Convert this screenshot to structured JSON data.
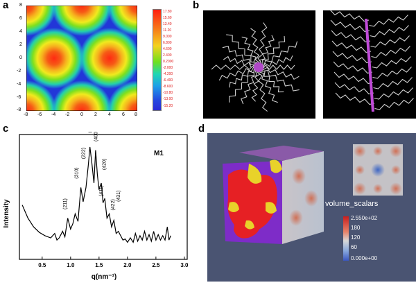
{
  "panels": {
    "a": {
      "label": "a",
      "x_ticks": [
        "-8",
        "-6",
        "-4",
        "-2",
        "0",
        "2",
        "4",
        "6",
        "8"
      ],
      "y_ticks": [
        "8",
        "6",
        "4",
        "2",
        "0",
        "-2",
        "-4",
        "-6",
        "-8"
      ],
      "colorbar_labels": [
        "17.80",
        "15.60",
        "13.40",
        "11.20",
        "9.000",
        "6.800",
        "4.600",
        "2.400",
        "0.2000",
        "-2.000",
        "-4.200",
        "-6.400",
        "-8.600",
        "-10.80",
        "-13.00",
        "-15.20"
      ],
      "colors": {
        "high": "#e8241b",
        "mid": "#f2e61e",
        "low": "#1e36d6"
      }
    },
    "b": {
      "label": "b"
    },
    "c": {
      "label": "c",
      "sample": "M1",
      "ylabel": "Intensity",
      "xlabel": "q(nm⁻¹)",
      "peaks": [
        "(211)",
        "(310)",
        "(222)",
        "(321)",
        "(400)",
        "(420)",
        "(411)",
        "(422)",
        "(431)"
      ],
      "x_ticks": [
        "0.5",
        "1.0",
        "1.5",
        "2.0",
        "2.5",
        "3.0"
      ]
    },
    "d": {
      "label": "d",
      "scalar_name": "volume_scalars",
      "scalar_ticks": [
        "2.550e+02",
        "180",
        "120",
        "60",
        "0.000e+00"
      ]
    }
  },
  "chart_data": {
    "type": "line",
    "title": "M1",
    "xlabel": "q(nm⁻¹)",
    "ylabel": "Intensity",
    "xlim": [
      0.1,
      3.05
    ],
    "ylim": [
      0,
      1
    ],
    "x": [
      0.15,
      0.25,
      0.35,
      0.45,
      0.55,
      0.65,
      0.72,
      0.76,
      0.8,
      0.86,
      0.9,
      0.95,
      1.0,
      1.04,
      1.08,
      1.13,
      1.18,
      1.22,
      1.27,
      1.31,
      1.34,
      1.37,
      1.41,
      1.44,
      1.47,
      1.5,
      1.54,
      1.57,
      1.6,
      1.64,
      1.68,
      1.72,
      1.76,
      1.8,
      1.84,
      1.88,
      1.92,
      1.96,
      2.0,
      2.05,
      2.1,
      2.14,
      2.18,
      2.22,
      2.26,
      2.3,
      2.34,
      2.38,
      2.42,
      2.46,
      2.5,
      2.54,
      2.58,
      2.62,
      2.66,
      2.7,
      2.73,
      2.76
    ],
    "y": [
      0.42,
      0.3,
      0.22,
      0.17,
      0.14,
      0.12,
      0.16,
      0.1,
      0.12,
      0.18,
      0.13,
      0.3,
      0.2,
      0.25,
      0.34,
      0.27,
      0.58,
      0.45,
      0.58,
      0.78,
      0.95,
      0.82,
      0.62,
      0.92,
      0.7,
      0.56,
      0.62,
      0.44,
      0.48,
      0.3,
      0.34,
      0.22,
      0.28,
      0.16,
      0.18,
      0.14,
      0.1,
      0.11,
      0.08,
      0.12,
      0.08,
      0.16,
      0.09,
      0.14,
      0.1,
      0.18,
      0.1,
      0.15,
      0.09,
      0.18,
      0.1,
      0.15,
      0.1,
      0.14,
      0.1,
      0.22,
      0.1,
      0.14
    ]
  }
}
